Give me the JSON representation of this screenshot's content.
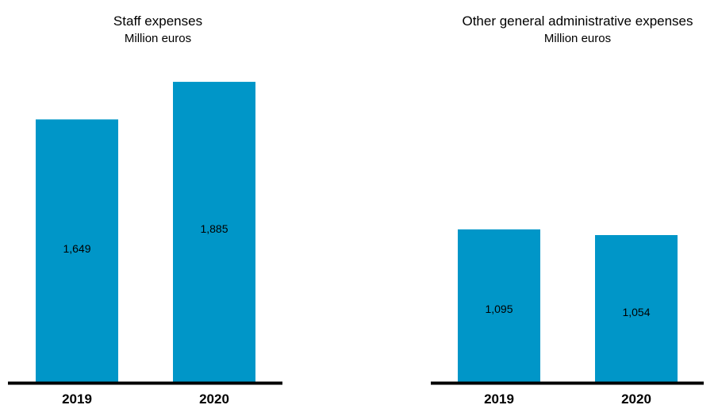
{
  "chart_data": [
    {
      "type": "bar",
      "title": "Staff expenses",
      "subtitle": "Million euros",
      "categories": [
        "2019",
        "2020"
      ],
      "values": [
        1649,
        1885
      ],
      "value_labels": [
        "1,649",
        "1,885"
      ],
      "ylim": [
        0,
        2000
      ],
      "grid": false,
      "bar_color": "#0096c8",
      "axis_color": "#000000"
    },
    {
      "type": "bar",
      "title": "Other general administrative expenses",
      "subtitle": "Million euros",
      "categories": [
        "2019",
        "2020"
      ],
      "values": [
        1095,
        1054
      ],
      "value_labels": [
        "1,095",
        "1,054"
      ],
      "ylim": [
        0,
        2000
      ],
      "grid": false,
      "bar_color": "#0096c8",
      "axis_color": "#000000"
    }
  ]
}
